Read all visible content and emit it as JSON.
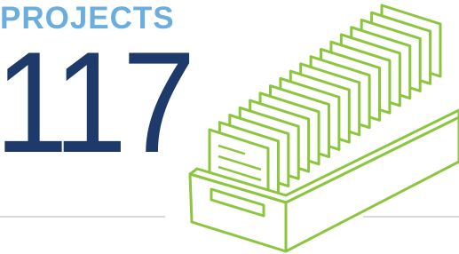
{
  "label": "PROJECTS",
  "value": 117
}
